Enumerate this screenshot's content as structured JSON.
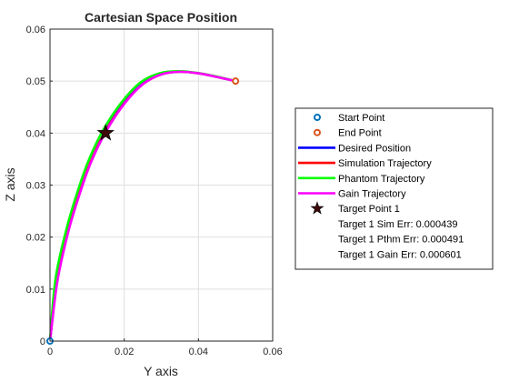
{
  "chart_data": {
    "type": "line",
    "title": "Cartesian Space Position",
    "xlabel": "Y axis",
    "ylabel": "Z axis",
    "xlim": [
      0,
      0.06
    ],
    "ylim": [
      0,
      0.06
    ],
    "xticks": [
      "0",
      "0.02",
      "0.04",
      "0.06"
    ],
    "yticks": [
      "0",
      "0.01",
      "0.02",
      "0.03",
      "0.04",
      "0.05",
      "0.06"
    ],
    "grid": true,
    "legend_position": "right",
    "series": [
      {
        "name": "Desired Position",
        "color": "#0000ff",
        "x": [
          0,
          0.002,
          0.005,
          0.008,
          0.011,
          0.015,
          0.02,
          0.025,
          0.03,
          0.035,
          0.04,
          0.045,
          0.05
        ],
        "y": [
          0,
          0.012,
          0.0215,
          0.0285,
          0.0345,
          0.0405,
          0.0458,
          0.0495,
          0.0513,
          0.0518,
          0.0515,
          0.0508,
          0.05
        ]
      },
      {
        "name": "Simulation Trajectory",
        "color": "#ff0000",
        "x": [
          0,
          0.002,
          0.005,
          0.008,
          0.011,
          0.015,
          0.02,
          0.025,
          0.03,
          0.035,
          0.04,
          0.045,
          0.05
        ],
        "y": [
          0,
          0.012,
          0.0215,
          0.0285,
          0.0345,
          0.0404,
          0.0457,
          0.0494,
          0.0513,
          0.0518,
          0.0515,
          0.0508,
          0.05
        ]
      },
      {
        "name": "Phantom Trajectory",
        "color": "#00ff00",
        "x": [
          0,
          0.0015,
          0.0045,
          0.0075,
          0.0105,
          0.0145,
          0.0195,
          0.0245,
          0.0295,
          0.0345,
          0.0395,
          0.0448,
          0.05
        ],
        "y": [
          0,
          0.012,
          0.0217,
          0.0289,
          0.0349,
          0.0408,
          0.0461,
          0.0498,
          0.0515,
          0.0519,
          0.0516,
          0.0509,
          0.05
        ]
      },
      {
        "name": "Gain Trajectory",
        "color": "#ff00ff",
        "x": [
          0,
          0.002,
          0.005,
          0.008,
          0.011,
          0.015,
          0.02,
          0.025,
          0.03,
          0.035,
          0.04,
          0.045,
          0.05
        ],
        "y": [
          0,
          0.0115,
          0.0212,
          0.0283,
          0.0343,
          0.0402,
          0.0456,
          0.0494,
          0.0513,
          0.0518,
          0.0515,
          0.0508,
          0.05
        ]
      }
    ],
    "markers": [
      {
        "name": "Start Point",
        "x": 0,
        "y": 0,
        "shape": "circle",
        "color": "#0072bd"
      },
      {
        "name": "End Point",
        "x": 0.05,
        "y": 0.05,
        "shape": "circle",
        "color": "#d95319"
      },
      {
        "name": "Target Point 1",
        "x": 0.015,
        "y": 0.04,
        "shape": "star",
        "color": "#3d0a0a"
      }
    ],
    "legend_entries": [
      {
        "label": "Start Point",
        "symbol": "circle",
        "color": "#0072bd"
      },
      {
        "label": "End Point",
        "symbol": "circle",
        "color": "#d95319"
      },
      {
        "label": "Desired Position",
        "symbol": "line",
        "color": "#0000ff"
      },
      {
        "label": "Simulation Trajectory",
        "symbol": "line",
        "color": "#ff0000"
      },
      {
        "label": "Phantom Trajectory",
        "symbol": "line",
        "color": "#00ff00"
      },
      {
        "label": "Gain Trajectory",
        "symbol": "line",
        "color": "#ff00ff"
      },
      {
        "label": "Target Point 1",
        "symbol": "star",
        "color": "#3d0a0a"
      },
      {
        "label": "Target 1 Sim Err: 0.000439",
        "symbol": "none",
        "color": ""
      },
      {
        "label": "Target 1 Pthm Err: 0.000491",
        "symbol": "none",
        "color": ""
      },
      {
        "label": "Target 1 Gain Err: 0.000601",
        "symbol": "none",
        "color": ""
      }
    ]
  }
}
